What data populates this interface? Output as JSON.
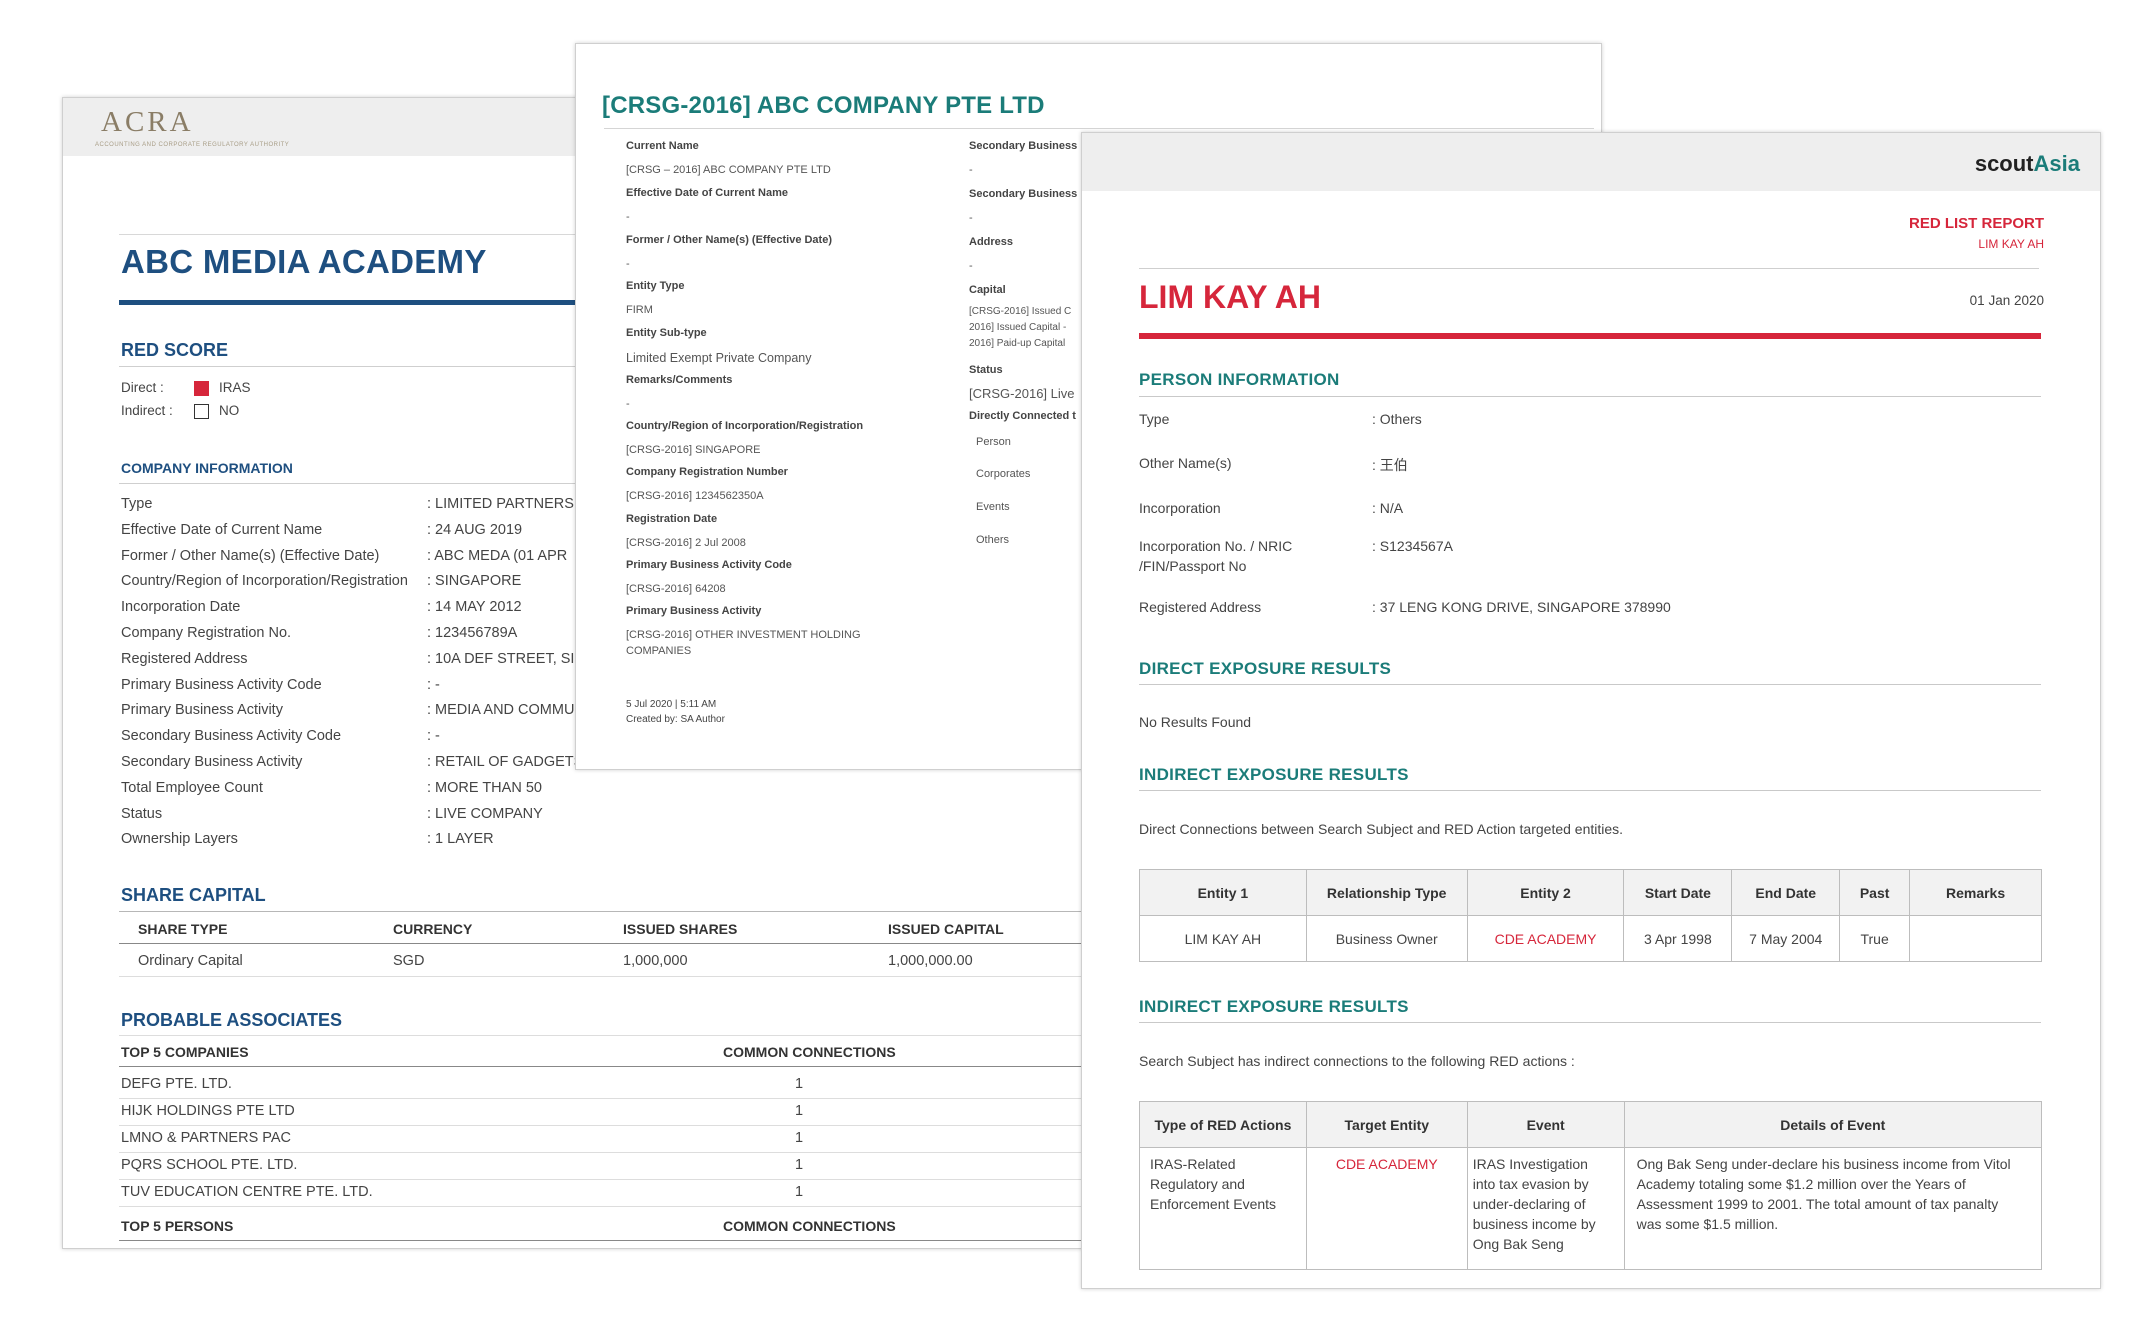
{
  "docA": {
    "logo": {
      "text": "ACRA",
      "tagline": "ACCOUNTING AND CORPORATE REGULATORY AUTHORITY"
    },
    "title": "ABC MEDIA ACADEMY",
    "red_score": {
      "heading": "RED SCORE",
      "direct_label": "Direct :",
      "direct_value": "IRAS",
      "direct_color": "#d6263b",
      "indirect_label": "Indirect :",
      "indirect_value": "NO"
    },
    "company_info": {
      "heading": "COMPANY INFORMATION",
      "rows": [
        {
          "label": "Type",
          "value": ": LIMITED PARTNERS"
        },
        {
          "label": "Effective Date of Current Name",
          "value": ": 24 AUG 2019"
        },
        {
          "label": "Former / Other Name(s) (Effective Date)",
          "value": ": ABC MEDA (01 APR"
        },
        {
          "label": "Country/Region of Incorporation/Registration",
          "value": ": SINGAPORE"
        },
        {
          "label": "Incorporation Date",
          "value": ": 14 MAY 2012"
        },
        {
          "label": "Company Registration No.",
          "value": ": 123456789A"
        },
        {
          "label": "Registered Address",
          "value": ": 10A DEF STREET, SI"
        },
        {
          "label": "Primary Business Activity Code",
          "value": ": -"
        },
        {
          "label": "Primary Business Activity",
          "value": ": MEDIA AND COMMU"
        },
        {
          "label": "Secondary Business Activity Code",
          "value": ": -"
        },
        {
          "label": "Secondary Business Activity",
          "value": ": RETAIL OF GADGETS (NOT MANUFACTURED ON SITE)"
        },
        {
          "label": "Total Employee Count",
          "value": ": MORE THAN 50"
        },
        {
          "label": "Status",
          "value": ": LIVE COMPANY"
        },
        {
          "label": "Ownership Layers",
          "value": ": 1 LAYER"
        }
      ]
    },
    "share_capital": {
      "heading": "SHARE CAPITAL",
      "columns": [
        "SHARE TYPE",
        "CURRENCY",
        "ISSUED SHARES",
        "ISSUED CAPITAL"
      ],
      "row": [
        "Ordinary Capital",
        "SGD",
        "1,000,000",
        "1,000,000.00"
      ]
    },
    "associates": {
      "heading": "PROBABLE ASSOCIATES",
      "companies_header": "TOP 5 COMPANIES",
      "connections_header": "COMMON CONNECTIONS",
      "companies": [
        {
          "name": "DEFG PTE. LTD.",
          "count": "1"
        },
        {
          "name": "HIJK HOLDINGS PTE LTD",
          "count": "1"
        },
        {
          "name": "LMNO & PARTNERS PAC",
          "count": "1"
        },
        {
          "name": "PQRS SCHOOL PTE. LTD.",
          "count": "1"
        },
        {
          "name": "TUV EDUCATION CENTRE PTE. LTD.",
          "count": "1"
        }
      ],
      "persons_header": "TOP 5 PERSONS",
      "persons_connections_header": "COMMON CONNECTIONS"
    }
  },
  "docB": {
    "title": "[CRSG-2016] ABC COMPANY PTE LTD",
    "left_fields": [
      {
        "label": "Current Name",
        "value": "[CRSG – 2016] ABC COMPANY PTE LTD"
      },
      {
        "label": "Effective Date of Current Name",
        "value": "-"
      },
      {
        "label": "Former / Other Name(s) (Effective Date)",
        "value": "-"
      },
      {
        "label": "Entity Type",
        "value": "FIRM"
      },
      {
        "label": "Entity Sub-type",
        "value": "Limited Exempt Private Company"
      },
      {
        "label": "Remarks/Comments",
        "value": "-"
      },
      {
        "label": "Country/Region of Incorporation/Registration",
        "value": "[CRSG-2016] SINGAPORE"
      },
      {
        "label": "Company Registration Number",
        "value": "[CRSG-2016] 1234562350A"
      },
      {
        "label": "Registration Date",
        "value": "[CRSG-2016] 2 Jul 2008"
      },
      {
        "label": "Primary Business Activity Code",
        "value": "[CRSG-2016] 64208"
      },
      {
        "label": "Primary Business Activity",
        "value": "[CRSG-2016] OTHER INVESTMENT HOLDING",
        "value2": "COMPANIES"
      }
    ],
    "right_fields": {
      "sec_code_label": "Secondary Business",
      "sec_code_value": "-",
      "sec_label": "Secondary Business",
      "sec_value": "-",
      "address_label": "Address",
      "address_value": "-",
      "capital_label": "Capital",
      "capital_lines": [
        "[CRSG-2016] Issued C",
        "2016] Issued Capital -",
        "2016] Paid-up Capital"
      ],
      "status_label": "Status",
      "status_value": "[CRSG-2016] Live",
      "connected_label": "Directly Connected t",
      "connected_items": [
        "Person",
        "Corporates",
        "Events",
        "Others"
      ]
    },
    "footer": {
      "date": "5 Jul 2020 | 5:11 AM",
      "author": "Created by: SA Author"
    }
  },
  "docC": {
    "brand": {
      "part1": "scout",
      "part2": "Asia",
      "accent": "#1b7c79"
    },
    "report_title": "RED LIST REPORT",
    "report_subject": "LIM KAY AH",
    "name": "LIM KAY AH",
    "date": "01 Jan 2020",
    "person_info": {
      "heading": "PERSON INFORMATION",
      "rows": [
        {
          "label": "Type",
          "value": ": Others"
        },
        {
          "label": "Other Name(s)",
          "value": ": 王伯"
        },
        {
          "label": "Incorporation",
          "value": ": N/A"
        },
        {
          "label": "Incorporation No. / NRIC",
          "label2": "/FIN/Passport No",
          "value": ": S1234567A"
        },
        {
          "label": "Registered Address",
          "value": ": 37 LENG KONG DRIVE, SINGAPORE 378990"
        }
      ]
    },
    "direct": {
      "heading": "DIRECT EXPOSURE RESULTS",
      "text": "No Results Found"
    },
    "indirect1": {
      "heading": "INDIRECT EXPOSURE RESULTS",
      "text": "Direct Connections between Search Subject and RED Action targeted entities.",
      "columns": [
        "Entity 1",
        "Relationship Type",
        "Entity 2",
        "Start Date",
        "End Date",
        "Past",
        "Remarks"
      ],
      "row": [
        "LIM KAY AH",
        "Business Owner",
        "CDE ACADEMY",
        "3 Apr 1998",
        "7 May 2004",
        "True",
        ""
      ]
    },
    "indirect2": {
      "heading": "INDIRECT EXPOSURE RESULTS",
      "text": "Search Subject has indirect connections to the following RED actions :",
      "columns": [
        "Type of RED Actions",
        "Target Entity",
        "Event",
        "Details of Event"
      ],
      "type_lines": [
        "IRAS-Related",
        "Regulatory and",
        "Enforcement Events"
      ],
      "target": "CDE ACADEMY",
      "event_lines": [
        "IRAS Investigation",
        "into tax evasion by",
        "under-declaring of",
        "business income by",
        "Ong Bak Seng"
      ],
      "details_lines": [
        "Ong Bak Seng under-declare his business income from Vitol",
        "Academy totaling some $1.2 million over the Years of",
        "Assessment 1999 to 2001. The total amount of tax panalty",
        "was some $1.5 million."
      ]
    },
    "accent_red": "#d6263b"
  }
}
